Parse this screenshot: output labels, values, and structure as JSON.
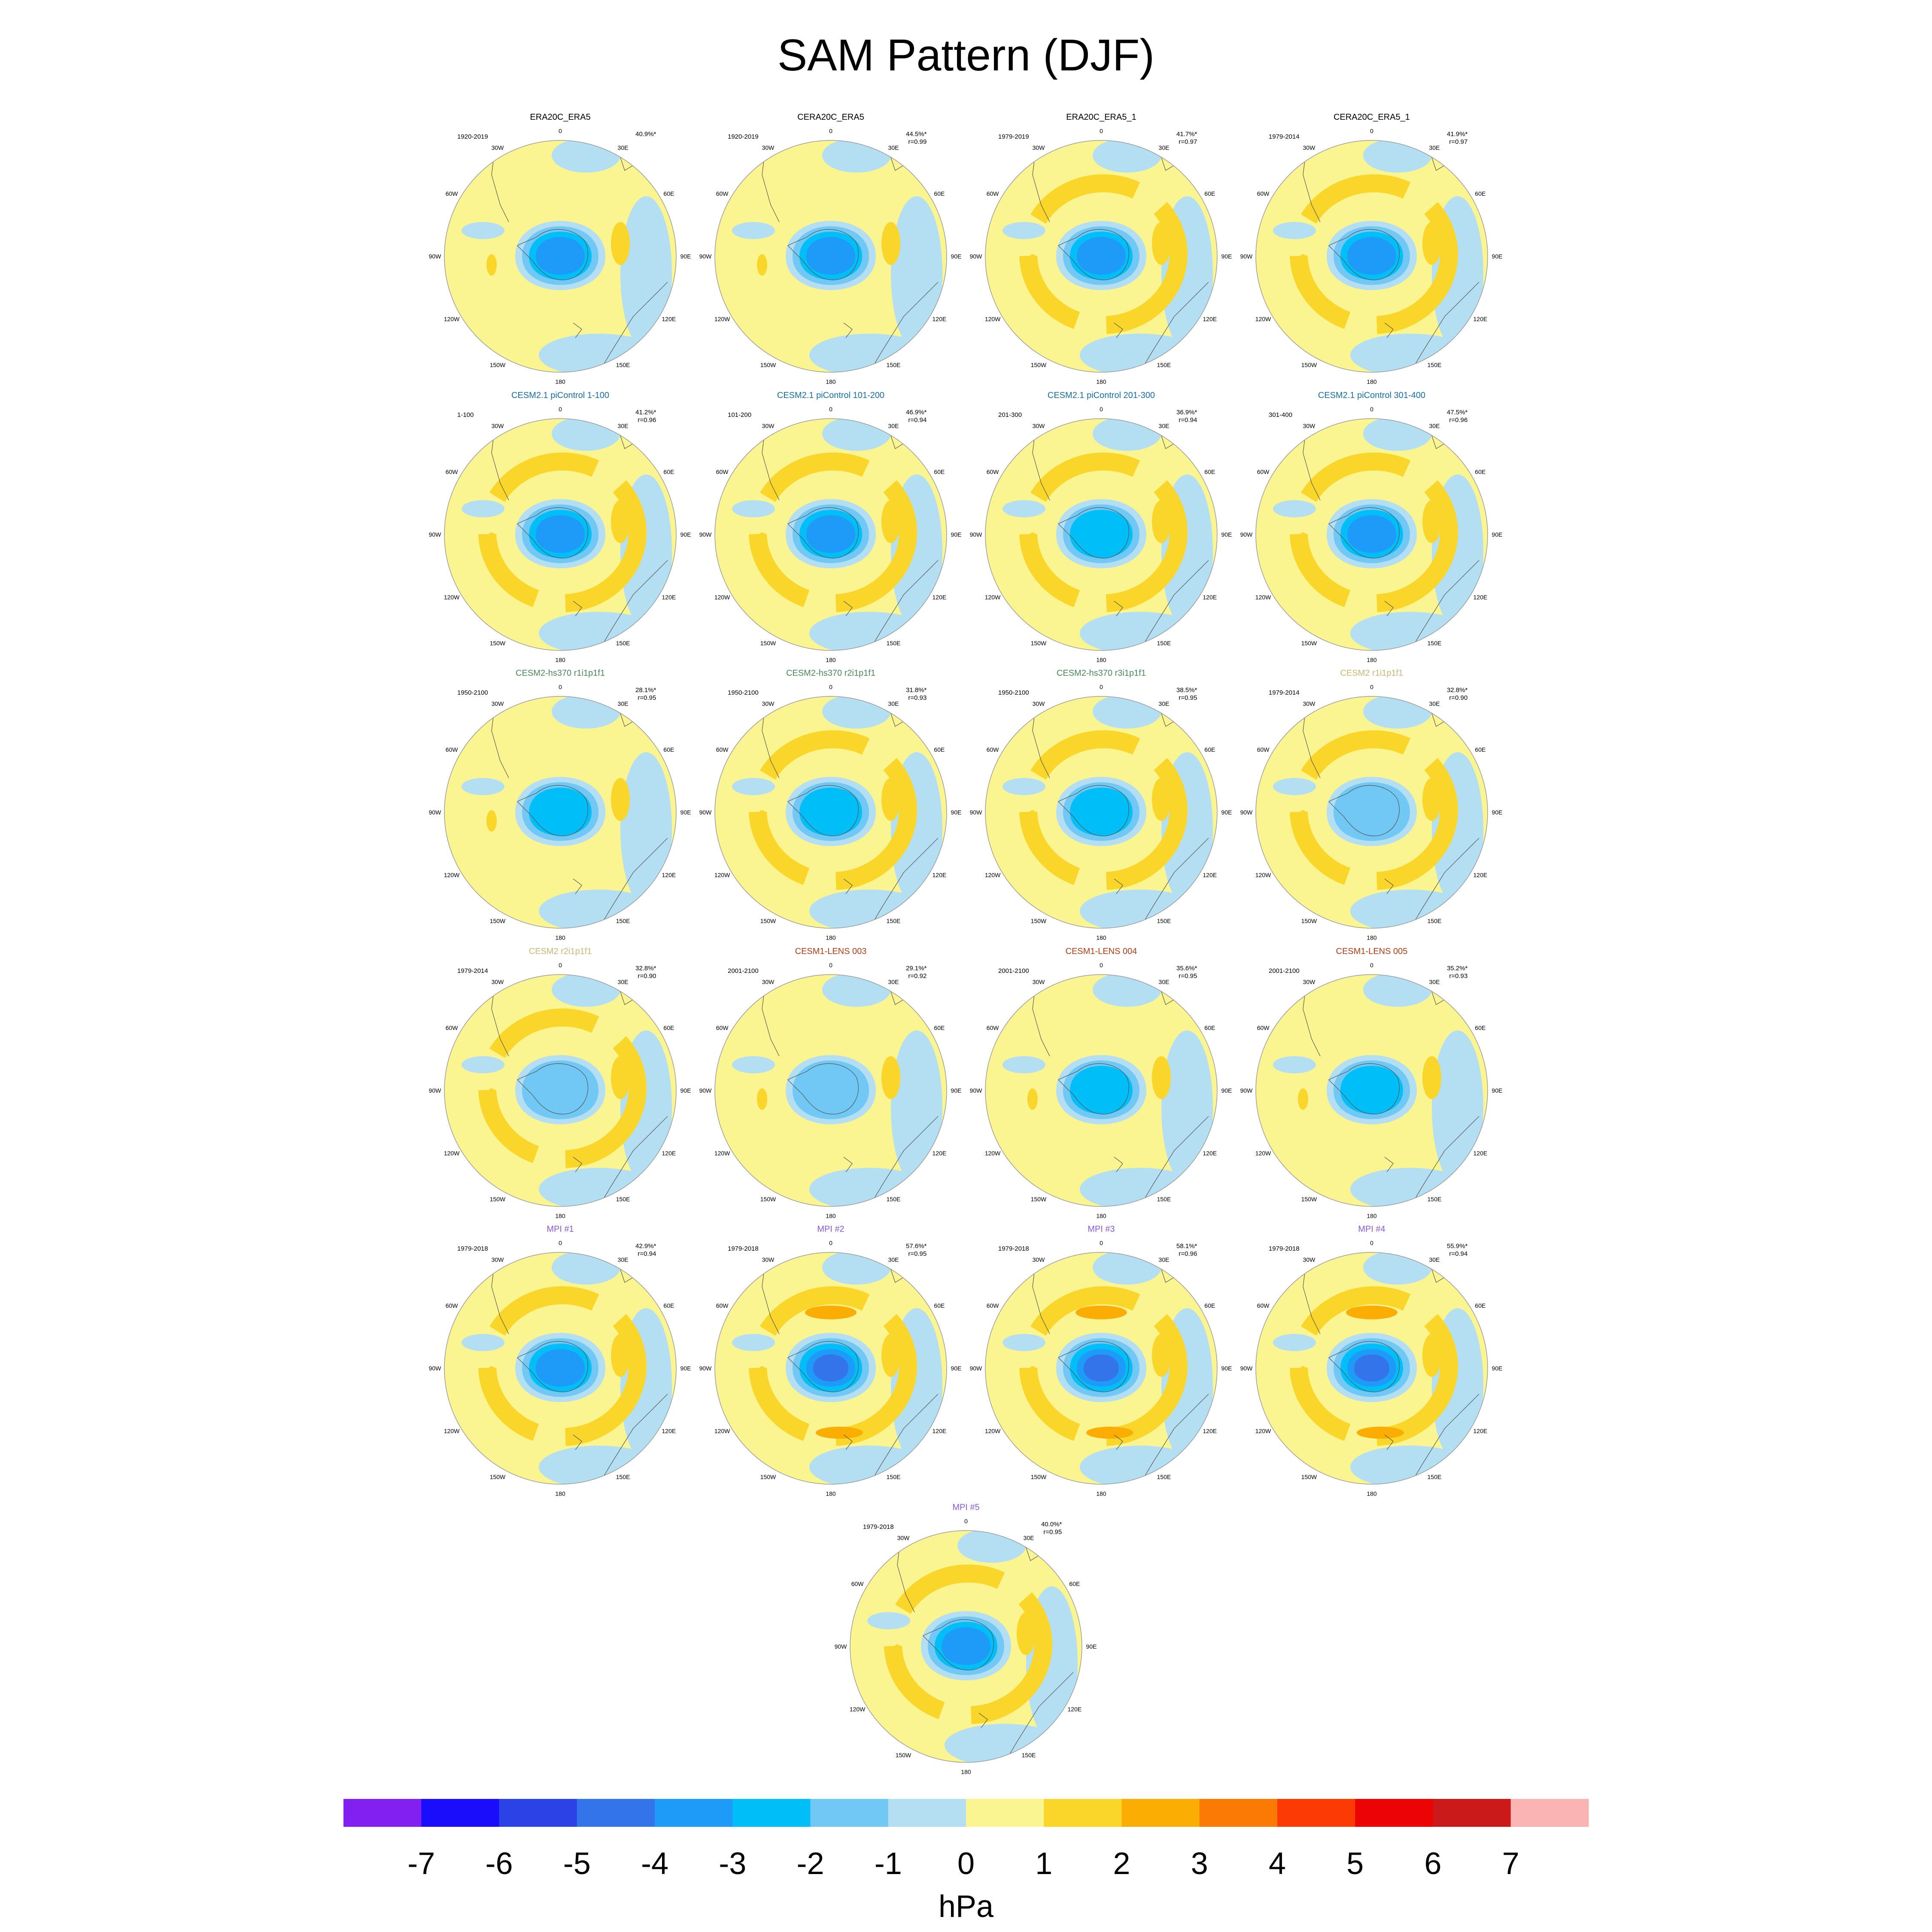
{
  "title": "SAM Pattern (DJF)",
  "colors": {
    "neg7": "#8120f0",
    "neg6": "#1a0dfc",
    "neg5": "#2a42e6",
    "neg4": "#3474ea",
    "neg3": "#1e9af8",
    "neg2": "#00bef8",
    "neg1": "#72c8f4",
    "neg0": "#b4dff2",
    "pos0": "#fbf591",
    "pos1": "#fbd62a",
    "pos2": "#fbad04",
    "pos3": "#fb7a04",
    "pos4": "#fc3a04",
    "pos5": "#ec0404",
    "pos6": "#cc1a1a",
    "pos7": "#fbb4b4",
    "title_black": "#000000",
    "title_cesm21": "#1a6e9e",
    "title_hs370": "#4a8a5a",
    "title_cesm2": "#c8b878",
    "title_lens": "#a8401a",
    "title_mpi": "#8a5ad8",
    "land_outline": "#555555",
    "rim": "#9a9a9a"
  },
  "lon_labels": [
    "0",
    "30E",
    "60E",
    "90E",
    "120E",
    "150E",
    "180",
    "150W",
    "120W",
    "90W",
    "60W",
    "30W"
  ],
  "panels": [
    {
      "title": "ERA20C_ERA5",
      "title_color": "title_black",
      "period": "1920-2019",
      "pct": "40.9%*",
      "r": "",
      "amp": 3,
      "ring": 0,
      "north": 0.3
    },
    {
      "title": "CERA20C_ERA5",
      "title_color": "title_black",
      "period": "1920-2019",
      "pct": "44.5%*",
      "r": "r=0.99",
      "amp": 3,
      "ring": 0,
      "north": 0.4
    },
    {
      "title": "ERA20C_ERA5_1",
      "title_color": "title_black",
      "period": "1979-2019",
      "pct": "41.7%*",
      "r": "r=0.97",
      "amp": 3,
      "ring": 1,
      "north": 0.3
    },
    {
      "title": "CERA20C_ERA5_1",
      "title_color": "title_black",
      "period": "1979-2014",
      "pct": "41.9%*",
      "r": "r=0.97",
      "amp": 3,
      "ring": 1,
      "north": 0.3
    },
    {
      "title": "CESM2.1 piControl 1-100",
      "title_color": "title_cesm21",
      "period": "1-100",
      "pct": "41.2%*",
      "r": "r=0.96",
      "amp": 3,
      "ring": 1,
      "north": 0.6
    },
    {
      "title": "CESM2.1 piControl 101-200",
      "title_color": "title_cesm21",
      "period": "101-200",
      "pct": "46.9%*",
      "r": "r=0.94",
      "amp": 3,
      "ring": 1,
      "north": 0.5
    },
    {
      "title": "CESM2.1 piControl 201-300",
      "title_color": "title_cesm21",
      "period": "201-300",
      "pct": "36.9%*",
      "r": "r=0.94",
      "amp": 2,
      "ring": 1,
      "north": 0.4
    },
    {
      "title": "CESM2.1 piControl 301-400",
      "title_color": "title_cesm21",
      "period": "301-400",
      "pct": "47.5%*",
      "r": "r=0.96",
      "amp": 3,
      "ring": 1,
      "north": 0.7
    },
    {
      "title": "CESM2-hs370 r1i1p1f1",
      "title_color": "title_hs370",
      "period": "1950-2100",
      "pct": "28.1%*",
      "r": "r=0.95",
      "amp": 2,
      "ring": 0,
      "north": 0.4
    },
    {
      "title": "CESM2-hs370 r2i1p1f1",
      "title_color": "title_hs370",
      "period": "1950-2100",
      "pct": "31.8%*",
      "r": "r=0.93",
      "amp": 2,
      "ring": 1,
      "north": 0.4
    },
    {
      "title": "CESM2-hs370 r3i1p1f1",
      "title_color": "title_hs370",
      "period": "1950-2100",
      "pct": "38.5%*",
      "r": "r=0.95",
      "amp": 2,
      "ring": 1,
      "north": 0.3
    },
    {
      "title": "CESM2 r1i1p1f1",
      "title_color": "title_cesm2",
      "period": "1979-2014",
      "pct": "32.8%*",
      "r": "r=0.90",
      "amp": 1,
      "ring": 1,
      "north": 0.6
    },
    {
      "title": "CESM2 r2i1p1f1",
      "title_color": "title_cesm2",
      "period": "1979-2014",
      "pct": "32.8%*",
      "r": "r=0.90",
      "amp": 1,
      "ring": 1,
      "north": 0.6
    },
    {
      "title": "CESM1-LENS 003",
      "title_color": "title_lens",
      "period": "2001-2100",
      "pct": "29.1%*",
      "r": "r=0.92",
      "amp": 1,
      "ring": 0,
      "north": 0.2
    },
    {
      "title": "CESM1-LENS 004",
      "title_color": "title_lens",
      "period": "2001-2100",
      "pct": "35.6%*",
      "r": "r=0.95",
      "amp": 2,
      "ring": 0,
      "north": 0.3
    },
    {
      "title": "CESM1-LENS 005",
      "title_color": "title_lens",
      "period": "2001-2100",
      "pct": "35.2%*",
      "r": "r=0.93",
      "amp": 2,
      "ring": 0,
      "north": 0.3
    },
    {
      "title": "MPI #1",
      "title_color": "title_mpi",
      "period": "1979-2018",
      "pct": "42.9%*",
      "r": "r=0.94",
      "amp": 3,
      "ring": 1,
      "north": 0.6
    },
    {
      "title": "MPI #2",
      "title_color": "title_mpi",
      "period": "1979-2018",
      "pct": "57.6%*",
      "r": "r=0.95",
      "amp": 4,
      "ring": 2,
      "north": 0.6
    },
    {
      "title": "MPI #3",
      "title_color": "title_mpi",
      "period": "1979-2018",
      "pct": "58.1%*",
      "r": "r=0.96",
      "amp": 5,
      "ring": 2,
      "north": 0.6
    },
    {
      "title": "MPI #4",
      "title_color": "title_mpi",
      "period": "1979-2018",
      "pct": "55.9%*",
      "r": "r=0.94",
      "amp": 4,
      "ring": 2,
      "north": 0.6
    },
    {
      "title": "MPI #5",
      "title_color": "title_mpi",
      "period": "1979-2018",
      "pct": "40.0%*",
      "r": "r=0.95",
      "amp": 3,
      "ring": 1,
      "north": 0.5
    }
  ],
  "colorbar": {
    "ticks": [
      "-7",
      "-6",
      "-5",
      "-4",
      "-3",
      "-2",
      "-1",
      "0",
      "1",
      "2",
      "3",
      "4",
      "5",
      "6",
      "7"
    ],
    "unit": "hPa",
    "fills": [
      "neg7",
      "neg6",
      "neg5",
      "neg4",
      "neg3",
      "neg2",
      "neg1",
      "neg0",
      "pos0",
      "pos1",
      "pos2",
      "pos3",
      "pos4",
      "pos5",
      "pos6",
      "pos7"
    ]
  }
}
